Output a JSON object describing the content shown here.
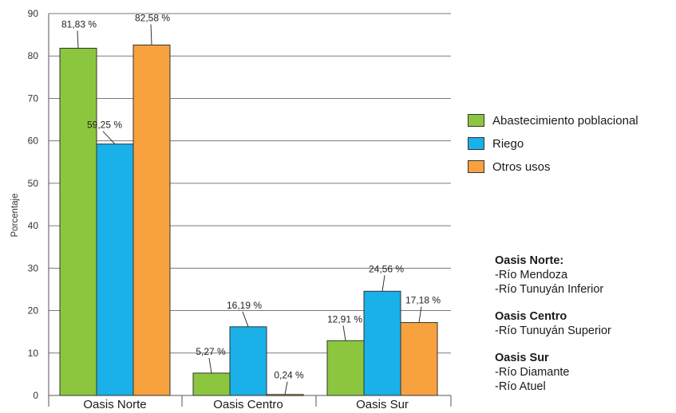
{
  "chart_data": {
    "type": "bar",
    "categories": [
      "Oasis Norte",
      "Oasis Centro",
      "Oasis Sur"
    ],
    "series": [
      {
        "name": "Abastecimiento poblacional",
        "color": "#8cc63f",
        "values": [
          81.83,
          5.27,
          12.91
        ],
        "labels": [
          "81,83 %",
          "5,27 %",
          "12,91 %"
        ]
      },
      {
        "name": "Riego",
        "color": "#1ab0e8",
        "values": [
          59.25,
          16.19,
          24.56
        ],
        "labels": [
          "59,25 %",
          "16,19 %",
          "24,56 %"
        ]
      },
      {
        "name": "Otros usos",
        "color": "#f7a13f",
        "values": [
          82.58,
          0.24,
          17.18
        ],
        "labels": [
          "82,58 %",
          "0,24 %",
          "17,18 %"
        ]
      }
    ],
    "ylabel": "Porcentaje",
    "ylim": [
      0,
      90
    ],
    "yticks": [
      "0",
      "10",
      "20",
      "30",
      "40",
      "50",
      "60",
      "70",
      "80",
      "90"
    ],
    "grid": true,
    "legend_position": "right"
  },
  "notes": [
    {
      "title": "Oasis Norte:",
      "lines": [
        "-Río Mendoza",
        "-Río Tunuyán Inferior"
      ]
    },
    {
      "title": "Oasis Centro",
      "lines": [
        "-Río Tunuyán Superior"
      ]
    },
    {
      "title": "Oasis Sur",
      "lines": [
        "-Río Diamante",
        "-Río Atuel"
      ]
    }
  ]
}
